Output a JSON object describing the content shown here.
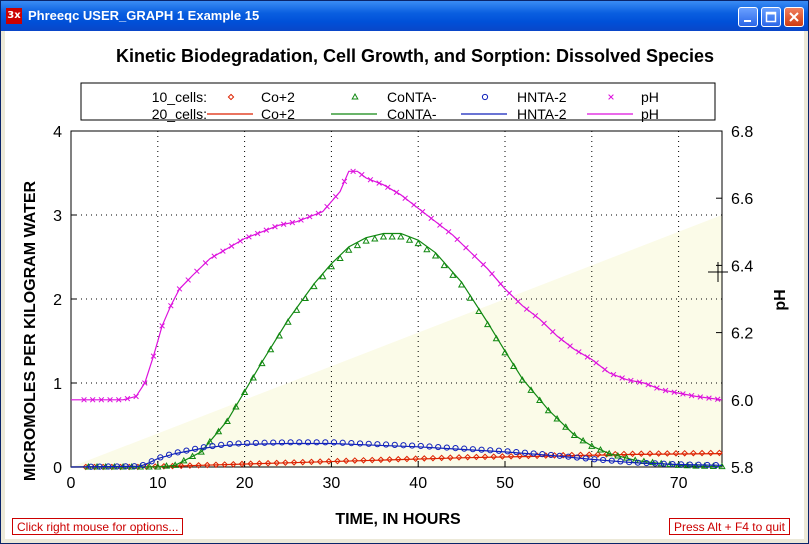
{
  "window": {
    "title": "Phreeqc USER_GRAPH 1 Example 15",
    "icon_text": "3x"
  },
  "status": {
    "left": "Click right mouse for options...",
    "right": "Press Alt + F4 to quit"
  },
  "colors": {
    "co": "#dd2200",
    "conta": "#118811",
    "hnta": "#1122bb",
    "ph": "#dd11dd",
    "shade": "#fbfbe8"
  },
  "chart_data": {
    "type": "line",
    "title": "Kinetic Biodegradation, Cell Growth, and Sorption: Dissolved Species",
    "xlabel": "TIME, IN HOURS",
    "ylabel": "MICROMOLES PER KILOGRAM WATER",
    "y2label": "pH",
    "xlim": [
      0,
      75
    ],
    "ylim": [
      0,
      4
    ],
    "y2lim": [
      5.8,
      6.8
    ],
    "xticks": [
      "0",
      "10",
      "20",
      "30",
      "40",
      "50",
      "60",
      "70"
    ],
    "yticks": [
      "0",
      "1",
      "2",
      "3",
      "4"
    ],
    "y2ticks": [
      "5.8",
      "6.0",
      "6.2",
      "6.4",
      "6.6",
      "6.8"
    ],
    "grid": true,
    "legend": {
      "placement": "top",
      "rows": [
        {
          "label": "10_cells:",
          "style": "markers",
          "entries": [
            "Co+2",
            "CoNTA-",
            "HNTA-2",
            "pH"
          ]
        },
        {
          "label": "20_cells:",
          "style": "lines",
          "entries": [
            "Co+2",
            "CoNTA-",
            "HNTA-2",
            "pH"
          ]
        }
      ]
    },
    "series": [
      {
        "name": "Co+2",
        "axis": "left",
        "x": [
          0,
          8,
          15,
          25,
          35,
          45,
          55,
          65,
          75
        ],
        "y": [
          0,
          0,
          0.02,
          0.05,
          0.08,
          0.11,
          0.13,
          0.15,
          0.16
        ]
      },
      {
        "name": "CoNTA-",
        "axis": "left",
        "x": [
          0,
          10,
          12,
          15,
          18,
          20,
          22,
          25,
          28,
          30,
          32,
          34,
          36,
          38,
          40,
          42,
          45,
          48,
          50,
          52,
          55,
          58,
          60,
          62,
          65,
          68,
          70,
          72,
          75
        ],
        "y": [
          0,
          0,
          0.02,
          0.18,
          0.55,
          0.9,
          1.25,
          1.75,
          2.18,
          2.42,
          2.62,
          2.73,
          2.78,
          2.78,
          2.7,
          2.55,
          2.2,
          1.72,
          1.38,
          1.05,
          0.68,
          0.38,
          0.25,
          0.16,
          0.08,
          0.04,
          0.02,
          0.01,
          0.005
        ]
      },
      {
        "name": "HNTA-2",
        "axis": "left",
        "x": [
          0,
          8,
          9,
          10,
          12,
          15,
          18,
          20,
          25,
          30,
          35,
          40,
          45,
          50,
          55,
          60,
          65,
          70,
          75
        ],
        "y": [
          0,
          0.01,
          0.05,
          0.1,
          0.16,
          0.22,
          0.26,
          0.27,
          0.28,
          0.28,
          0.26,
          0.24,
          0.21,
          0.18,
          0.14,
          0.09,
          0.05,
          0.03,
          0.02
        ]
      },
      {
        "name": "pH",
        "axis": "right",
        "x": [
          0,
          2,
          4,
          6,
          7.5,
          8.5,
          9.5,
          10.5,
          11.5,
          12.5,
          14,
          16,
          18,
          20,
          22,
          24,
          26,
          28,
          29,
          30,
          31,
          32,
          33,
          34,
          36,
          38,
          40,
          42,
          44,
          46,
          48,
          50,
          52,
          54,
          56,
          58,
          60,
          62,
          64,
          66,
          68,
          70,
          72,
          75
        ],
        "y": [
          6,
          6,
          6,
          6,
          6.01,
          6.05,
          6.13,
          6.22,
          6.28,
          6.33,
          6.37,
          6.42,
          6.45,
          6.48,
          6.5,
          6.52,
          6.53,
          6.55,
          6.56,
          6.59,
          6.62,
          6.68,
          6.68,
          6.66,
          6.64,
          6.61,
          6.57,
          6.53,
          6.49,
          6.44,
          6.39,
          6.33,
          6.28,
          6.24,
          6.19,
          6.15,
          6.12,
          6.08,
          6.06,
          6.05,
          6.03,
          6.02,
          6.01,
          6.0
        ]
      }
    ]
  }
}
